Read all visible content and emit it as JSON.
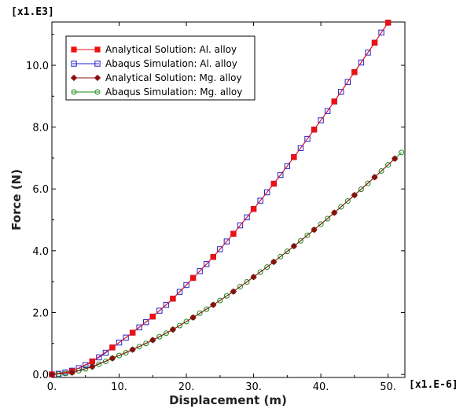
{
  "chart_data": {
    "type": "line",
    "xlabel": "Displacement (m)",
    "ylabel": "Force (N)",
    "x_multiplier": "[x1.E-6]",
    "y_multiplier": "[x1.E3]",
    "xlim": [
      0,
      52.5
    ],
    "ylim": [
      -0.1,
      11.4
    ],
    "x_ticks": [
      0,
      10,
      20,
      30,
      40,
      50
    ],
    "x_tick_labels": [
      "0.",
      "10.",
      "20.",
      "30.",
      "40.",
      "50."
    ],
    "y_ticks": [
      0,
      2,
      4,
      6,
      8,
      10
    ],
    "y_tick_labels": [
      "0.0",
      "2.0",
      "4.0",
      "6.0",
      "8.0",
      "10.0"
    ],
    "grid": false,
    "legend_position": "top-left",
    "series": [
      {
        "name": "Analytical Solution: Al. alloy",
        "color": "#ee1111",
        "marker": "square-filled",
        "x": [
          0,
          3,
          6,
          9,
          12,
          15,
          18,
          21,
          24,
          27,
          30,
          33,
          36,
          39,
          42,
          45,
          48,
          50
        ],
        "y": [
          0.0,
          0.1,
          0.42,
          0.87,
          1.35,
          1.87,
          2.45,
          3.12,
          3.8,
          4.55,
          5.35,
          6.17,
          7.03,
          7.92,
          8.83,
          9.78,
          10.73,
          11.38
        ]
      },
      {
        "name": "Abaqus Simulation: Al. alloy",
        "color": "#2222cc",
        "marker": "square-open",
        "x": [
          0,
          1,
          2,
          3,
          4,
          5,
          6,
          7,
          8,
          9,
          10,
          11,
          12,
          13,
          14,
          15,
          16,
          17,
          18,
          19,
          20,
          21,
          22,
          23,
          24,
          25,
          26,
          27,
          28,
          29,
          30,
          31,
          32,
          33,
          34,
          35,
          36,
          37,
          38,
          39,
          40,
          41,
          42,
          43,
          44,
          45,
          46,
          47,
          48,
          49,
          50
        ],
        "y": [
          0.0,
          0.02,
          0.06,
          0.12,
          0.2,
          0.3,
          0.42,
          0.55,
          0.7,
          0.87,
          1.03,
          1.19,
          1.35,
          1.52,
          1.69,
          1.87,
          2.06,
          2.25,
          2.45,
          2.67,
          2.89,
          3.12,
          3.34,
          3.57,
          3.8,
          4.05,
          4.3,
          4.55,
          4.82,
          5.08,
          5.35,
          5.62,
          5.89,
          6.17,
          6.45,
          6.74,
          7.03,
          7.32,
          7.62,
          7.92,
          8.22,
          8.52,
          8.83,
          9.14,
          9.46,
          9.78,
          10.09,
          10.41,
          10.73,
          11.06,
          11.38
        ]
      },
      {
        "name": "Analytical Solution: Mg. alloy",
        "color": "#8b1010",
        "marker": "diamond-filled",
        "x": [
          0,
          3,
          6,
          9,
          12,
          15,
          18,
          21,
          24,
          27,
          30,
          33,
          36,
          39,
          42,
          45,
          48,
          51
        ],
        "y": [
          0.0,
          0.06,
          0.25,
          0.52,
          0.8,
          1.11,
          1.45,
          1.84,
          2.25,
          2.68,
          3.15,
          3.64,
          4.15,
          4.68,
          5.23,
          5.8,
          6.38,
          6.98
        ]
      },
      {
        "name": "Abaqus Simulation: Mg. alloy",
        "color": "#1a8a1a",
        "marker": "circle-open",
        "x": [
          0,
          1,
          2,
          3,
          4,
          5,
          6,
          7,
          8,
          9,
          10,
          11,
          12,
          13,
          14,
          15,
          16,
          17,
          18,
          19,
          20,
          21,
          22,
          23,
          24,
          25,
          26,
          27,
          28,
          29,
          30,
          31,
          32,
          33,
          34,
          35,
          36,
          37,
          38,
          39,
          40,
          41,
          42,
          43,
          44,
          45,
          46,
          47,
          48,
          49,
          50,
          51,
          52
        ],
        "y": [
          0.0,
          0.01,
          0.03,
          0.06,
          0.12,
          0.18,
          0.25,
          0.33,
          0.42,
          0.52,
          0.61,
          0.7,
          0.8,
          0.9,
          1.0,
          1.11,
          1.22,
          1.33,
          1.45,
          1.58,
          1.71,
          1.84,
          1.98,
          2.11,
          2.25,
          2.39,
          2.54,
          2.68,
          2.84,
          2.99,
          3.15,
          3.31,
          3.47,
          3.64,
          3.81,
          3.98,
          4.15,
          4.32,
          4.5,
          4.68,
          4.86,
          5.04,
          5.23,
          5.42,
          5.61,
          5.8,
          5.99,
          6.18,
          6.38,
          6.58,
          6.78,
          6.98,
          7.18
        ]
      }
    ]
  }
}
